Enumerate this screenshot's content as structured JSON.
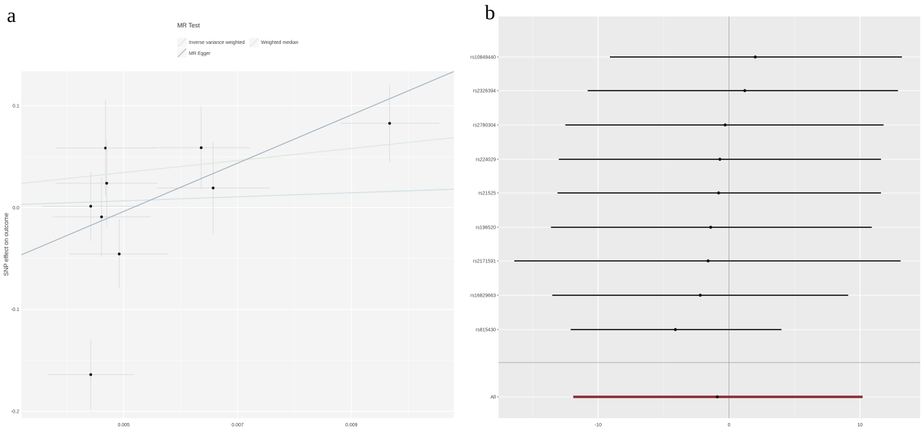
{
  "panel_labels": [
    "a",
    "b"
  ],
  "chart_data": [
    {
      "type": "scatter",
      "panel": "a",
      "title": "",
      "xlabel": "",
      "ylabel": "SNP effect on outcome",
      "xlim": [
        0.0032,
        0.0108
      ],
      "ylim": [
        -0.2067,
        0.1337
      ],
      "x_ticks": [
        0.005,
        0.007,
        0.009
      ],
      "x_tick_labels": [
        "0.005",
        "0.007",
        "0.009"
      ],
      "y_ticks": [
        -0.2,
        -0.1,
        0.0,
        0.1
      ],
      "y_tick_labels": [
        "-0.2",
        "-0.1",
        "0.0",
        "0.1"
      ],
      "grid": true,
      "legend": {
        "title": "MR Test",
        "position": "top",
        "entries": [
          {
            "label": "Inverse variance weighted",
            "color": "#d9e8da"
          },
          {
            "label": "Weighted median",
            "color": "#e2e2e2"
          },
          {
            "label": "MR Egger",
            "color": "#9fb3c0"
          }
        ]
      },
      "points": [
        {
          "x": 0.00442,
          "y": -0.164,
          "xerr": 0.00076,
          "yerr": 0.034
        },
        {
          "x": 0.00442,
          "y": 0.0013,
          "xerr": 0.00086,
          "yerr": 0.034
        },
        {
          "x": 0.00461,
          "y": -0.0091,
          "xerr": 0.00086,
          "yerr": 0.039
        },
        {
          "x": 0.00468,
          "y": 0.0585,
          "xerr": 0.00087,
          "yerr": 0.047
        },
        {
          "x": 0.0047,
          "y": 0.0239,
          "xerr": 0.0009,
          "yerr": 0.043
        },
        {
          "x": 0.00492,
          "y": -0.0455,
          "xerr": 0.00087,
          "yerr": 0.034
        },
        {
          "x": 0.00636,
          "y": 0.0588,
          "xerr": 0.00087,
          "yerr": 0.041
        },
        {
          "x": 0.00657,
          "y": 0.0193,
          "xerr": 0.00099,
          "yerr": 0.045
        },
        {
          "x": 0.00967,
          "y": 0.0827,
          "xerr": 0.00087,
          "yerr": 0.038
        }
      ],
      "lines": [
        {
          "name": "Inverse variance weighted",
          "intercept": 0.0048,
          "slope": 5.92,
          "color": "#d9e8da"
        },
        {
          "name": "Weighted median",
          "intercept": -0.0032,
          "slope": 1.97,
          "color": "#cfdfe6"
        },
        {
          "name": "MR Egger",
          "intercept": -0.1222,
          "slope": 23.69,
          "color": "#9fb3c0"
        }
      ]
    },
    {
      "type": "forest",
      "panel": "b",
      "title": "",
      "xlabel": "",
      "ylabel": "",
      "xlim": [
        -17.6,
        14.6
      ],
      "x_ticks": [
        -10,
        0,
        10
      ],
      "x_tick_labels": [
        "-10",
        "0",
        "10"
      ],
      "grid": true,
      "reference_line": 0,
      "rows": [
        {
          "label": "rs10849440",
          "estimate": 2.0,
          "lower": -9.1,
          "upper": 13.2
        },
        {
          "label": "rs2326394",
          "estimate": 1.2,
          "lower": -10.8,
          "upper": 12.9
        },
        {
          "label": "rs2780304",
          "estimate": -0.3,
          "lower": -12.5,
          "upper": 11.8
        },
        {
          "label": "rs224029",
          "estimate": -0.7,
          "lower": -13.0,
          "upper": 11.6
        },
        {
          "label": "rs21525",
          "estimate": -0.8,
          "lower": -13.1,
          "upper": 11.6
        },
        {
          "label": "rs196520",
          "estimate": -1.4,
          "lower": -13.6,
          "upper": 10.9
        },
        {
          "label": "rs2171591",
          "estimate": -1.6,
          "lower": -16.4,
          "upper": 13.1
        },
        {
          "label": "rs16829663",
          "estimate": -2.2,
          "lower": -13.5,
          "upper": 9.1
        },
        {
          "label": "rs815430",
          "estimate": -4.1,
          "lower": -12.1,
          "upper": 4.0
        }
      ],
      "summary": {
        "label": "All",
        "estimate": -0.9,
        "lower": -11.9,
        "upper": 10.2,
        "color": "#8b2a2f"
      }
    }
  ]
}
